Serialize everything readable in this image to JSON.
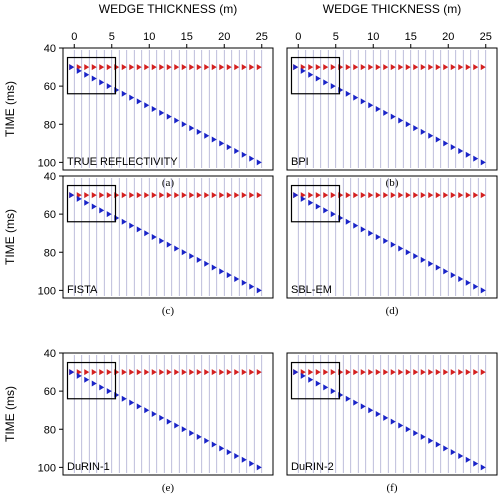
{
  "figure": {
    "x_axis_label": "WEDGE THICKNESS (m)",
    "y_axis_label": "TIME (ms)",
    "x_ticks": [
      0,
      5,
      10,
      15,
      20,
      25
    ],
    "y_ticks": [
      40,
      60,
      80,
      100
    ],
    "colors": {
      "top_reflector": "#d42020",
      "bottom_reflector": "#1a24c8",
      "trace": "#a0a0cc",
      "box": "#000000"
    }
  },
  "chart_data": [
    {
      "type": "scatter",
      "panel": "TRUE REFLECTIVITY",
      "caption": "(a)",
      "xlim": [
        -1.5,
        26.5
      ],
      "ylim": [
        40,
        104
      ],
      "x": [
        0,
        1,
        2,
        3,
        4,
        5,
        6,
        7,
        8,
        9,
        10,
        11,
        12,
        13,
        14,
        15,
        16,
        17,
        18,
        19,
        20,
        21,
        22,
        23,
        24,
        25
      ],
      "series": [
        {
          "values": [
            50,
            50,
            50,
            50,
            50,
            50,
            50,
            50,
            50,
            50,
            50,
            50,
            50,
            50,
            50,
            50,
            50,
            50,
            50,
            50,
            50,
            50,
            50,
            50,
            50,
            50
          ]
        },
        {
          "values": [
            50,
            52,
            54,
            56,
            58,
            60,
            62,
            64,
            66,
            68,
            70,
            72,
            74,
            76,
            78,
            80,
            82,
            84,
            86,
            88,
            90,
            92,
            94,
            96,
            98,
            100
          ]
        }
      ]
    },
    {
      "type": "scatter",
      "panel": "BPI",
      "caption": "(b)",
      "xlim": [
        -1.5,
        26.5
      ],
      "ylim": [
        40,
        104
      ],
      "x": [
        0,
        1,
        2,
        3,
        4,
        5,
        6,
        7,
        8,
        9,
        10,
        11,
        12,
        13,
        14,
        15,
        16,
        17,
        18,
        19,
        20,
        21,
        22,
        23,
        24,
        25
      ],
      "series": [
        {
          "values": [
            50,
            50,
            50,
            50,
            50,
            50,
            50,
            50,
            50,
            50,
            50,
            50,
            50,
            50,
            50,
            50,
            50,
            50,
            50,
            50,
            50,
            50,
            50,
            50,
            50,
            50
          ]
        },
        {
          "values": [
            50,
            52,
            54,
            56,
            58,
            60,
            62,
            64,
            66,
            68,
            70,
            72,
            74,
            76,
            78,
            80,
            82,
            84,
            86,
            88,
            90,
            92,
            94,
            96,
            98,
            100
          ]
        }
      ]
    },
    {
      "type": "scatter",
      "panel": "FISTA",
      "caption": "(c)",
      "xlim": [
        -1.5,
        26.5
      ],
      "ylim": [
        40,
        104
      ],
      "x": [
        0,
        1,
        2,
        3,
        4,
        5,
        6,
        7,
        8,
        9,
        10,
        11,
        12,
        13,
        14,
        15,
        16,
        17,
        18,
        19,
        20,
        21,
        22,
        23,
        24,
        25
      ],
      "series": [
        {
          "values": [
            50,
            50,
            50,
            50,
            50,
            50,
            50,
            50,
            50,
            50,
            50,
            50,
            50,
            50,
            50,
            50,
            50,
            50,
            50,
            50,
            50,
            50,
            50,
            50,
            50,
            50
          ]
        },
        {
          "values": [
            50,
            52,
            54,
            56,
            58,
            60,
            62,
            64,
            66,
            68,
            70,
            72,
            74,
            76,
            78,
            80,
            82,
            84,
            86,
            88,
            90,
            92,
            94,
            96,
            98,
            100
          ]
        }
      ]
    },
    {
      "type": "scatter",
      "panel": "SBL-EM",
      "caption": "(d)",
      "xlim": [
        -1.5,
        26.5
      ],
      "ylim": [
        40,
        104
      ],
      "x": [
        0,
        1,
        2,
        3,
        4,
        5,
        6,
        7,
        8,
        9,
        10,
        11,
        12,
        13,
        14,
        15,
        16,
        17,
        18,
        19,
        20,
        21,
        22,
        23,
        24,
        25
      ],
      "series": [
        {
          "values": [
            50,
            50,
            50,
            50,
            50,
            50,
            50,
            50,
            50,
            50,
            50,
            50,
            50,
            50,
            50,
            50,
            50,
            50,
            50,
            50,
            50,
            50,
            50,
            50,
            50,
            50
          ]
        },
        {
          "values": [
            50,
            52,
            54,
            56,
            58,
            60,
            62,
            64,
            66,
            68,
            70,
            72,
            74,
            76,
            78,
            80,
            82,
            84,
            86,
            88,
            90,
            92,
            94,
            96,
            98,
            100
          ]
        }
      ]
    },
    {
      "type": "scatter",
      "panel": "DuRIN-1",
      "caption": "(e)",
      "xlim": [
        -1.5,
        26.5
      ],
      "ylim": [
        40,
        104
      ],
      "x": [
        0,
        1,
        2,
        3,
        4,
        5,
        6,
        7,
        8,
        9,
        10,
        11,
        12,
        13,
        14,
        15,
        16,
        17,
        18,
        19,
        20,
        21,
        22,
        23,
        24,
        25
      ],
      "series": [
        {
          "values": [
            50,
            50,
            50,
            50,
            50,
            50,
            50,
            50,
            50,
            50,
            50,
            50,
            50,
            50,
            50,
            50,
            50,
            50,
            50,
            50,
            50,
            50,
            50,
            50,
            50,
            50
          ]
        },
        {
          "values": [
            50,
            52,
            54,
            56,
            58,
            60,
            62,
            64,
            66,
            68,
            70,
            72,
            74,
            76,
            78,
            80,
            82,
            84,
            86,
            88,
            90,
            92,
            94,
            96,
            98,
            100
          ]
        }
      ]
    },
    {
      "type": "scatter",
      "panel": "DuRIN-2",
      "caption": "(f)",
      "xlim": [
        -1.5,
        26.5
      ],
      "ylim": [
        40,
        104
      ],
      "x": [
        0,
        1,
        2,
        3,
        4,
        5,
        6,
        7,
        8,
        9,
        10,
        11,
        12,
        13,
        14,
        15,
        16,
        17,
        18,
        19,
        20,
        21,
        22,
        23,
        24,
        25
      ],
      "series": [
        {
          "values": [
            50,
            50,
            50,
            50,
            50,
            50,
            50,
            50,
            50,
            50,
            50,
            50,
            50,
            50,
            50,
            50,
            50,
            50,
            50,
            50,
            50,
            50,
            50,
            50,
            50,
            50
          ]
        },
        {
          "values": [
            50,
            52,
            54,
            56,
            58,
            60,
            62,
            64,
            66,
            68,
            70,
            72,
            74,
            76,
            78,
            80,
            82,
            84,
            86,
            88,
            90,
            92,
            94,
            96,
            98,
            100
          ]
        }
      ]
    }
  ]
}
